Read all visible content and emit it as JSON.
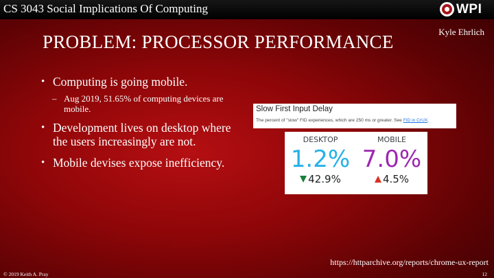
{
  "header": {
    "course_title": "CS 3043 Social Implications Of Computing",
    "logo_text": "WPI",
    "logo_icon": "wpi-seal-icon",
    "author": "Kyle Ehrlich"
  },
  "slide": {
    "title": "PROBLEM: PROCESSOR PERFORMANCE",
    "bullets": [
      {
        "text": "Computing is going mobile.",
        "sub": "Aug 2019, 51.65% of computing devices are mobile."
      },
      {
        "text": "Development lives on desktop where the users increasingly are not."
      },
      {
        "text": "Mobile devises expose inefficiency."
      }
    ],
    "bullet_glyph": "•",
    "sub_glyph": "–"
  },
  "metric": {
    "title": "Slow First Input Delay",
    "description_prefix": "The percent of \"slow\" FID experiences, which are 250 ms or greater. See ",
    "link_text": "FID in CrUX",
    "description_suffix": ".",
    "desktop": {
      "label": "DESKTOP",
      "value": "1.2%",
      "change": "42.9%",
      "direction": "down",
      "color": "#26b0e8"
    },
    "mobile": {
      "label": "MOBILE",
      "value": "7.0%",
      "change": "4.5%",
      "direction": "up",
      "color": "#9c27b0"
    }
  },
  "source": "https://httparchive.org/reports/chrome-ux-report",
  "footer": {
    "copyright": "© 2019 Keith A. Pray",
    "page_number": "12"
  },
  "colors": {
    "background": "#8e0608",
    "topbar": "#000000",
    "down_arrow": "#188038",
    "up_arrow": "#d93025",
    "link": "#1a73e8"
  }
}
